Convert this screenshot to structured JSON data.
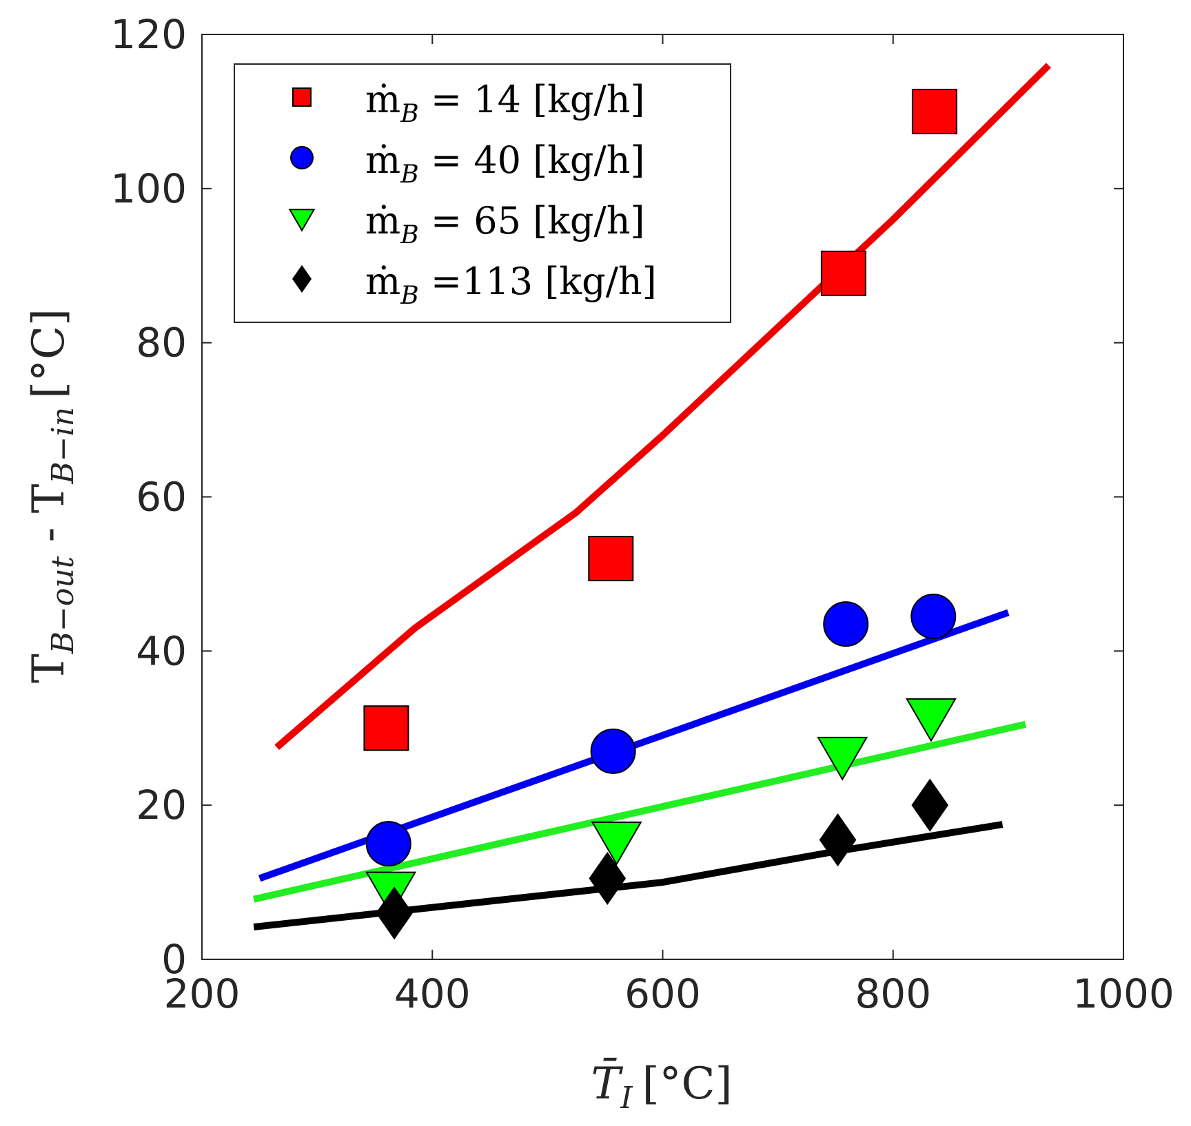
{
  "chart_data": {
    "type": "scatter",
    "title": "",
    "xlabel": "T̄",
    "xlabel_sub": "I",
    "xlabel_unit": "[°C]",
    "ylabel_main": "T",
    "ylabel_sub1": "B−out",
    "ylabel_mid": " - T",
    "ylabel_sub2": "B−in",
    "ylabel_unit": "[°C]",
    "xlim": [
      200,
      1000
    ],
    "ylim": [
      0,
      120
    ],
    "xticks": [
      200,
      400,
      600,
      800,
      1000
    ],
    "yticks": [
      0,
      20,
      40,
      60,
      80,
      100,
      120
    ],
    "grid": false,
    "legend_position": "top-left",
    "series": [
      {
        "name": "ṁ_B = 14 [kg/h]",
        "legend_main": "ṁ",
        "legend_sub": "B",
        "legend_rest": " = 14 [kg/h]",
        "marker": "square",
        "color": "#ff0000",
        "line_color": "#ee0000",
        "points": [
          [
            360,
            30
          ],
          [
            555,
            52
          ],
          [
            757,
            89
          ],
          [
            836,
            110
          ]
        ],
        "fit": [
          [
            265,
            27.5
          ],
          [
            385,
            43
          ],
          [
            525,
            58
          ],
          [
            600,
            68
          ],
          [
            700,
            82
          ],
          [
            800,
            96
          ],
          [
            935,
            116
          ]
        ]
      },
      {
        "name": "ṁ_B = 40 [kg/h]",
        "legend_main": "ṁ",
        "legend_sub": "B",
        "legend_rest": " = 40 [kg/h]",
        "marker": "circle",
        "color": "#0000ff",
        "line_color": "#0000ee",
        "points": [
          [
            362,
            15
          ],
          [
            557,
            27
          ],
          [
            759,
            43.5
          ],
          [
            835,
            44.5
          ]
        ],
        "fit": [
          [
            250,
            10.5
          ],
          [
            900,
            45
          ]
        ]
      },
      {
        "name": "ṁ_B = 65 [kg/h]",
        "legend_main": "ṁ",
        "legend_sub": "B",
        "legend_rest": " = 65 [kg/h]",
        "marker": "triangle-down",
        "color": "#00ff00",
        "line_color": "#22ee22",
        "points": [
          [
            364,
            9
          ],
          [
            560,
            15.5
          ],
          [
            756,
            26.5
          ],
          [
            833,
            31.5
          ]
        ],
        "fit": [
          [
            245,
            7.8
          ],
          [
            915,
            30.5
          ]
        ]
      },
      {
        "name": "ṁ_B =113 [kg/h]",
        "legend_main": "ṁ",
        "legend_sub": "B",
        "legend_rest": " =113 [kg/h]",
        "marker": "diamond",
        "color": "#000000",
        "line_color": "#000000",
        "points": [
          [
            367,
            6
          ],
          [
            552,
            10.5
          ],
          [
            752,
            15.5
          ],
          [
            832,
            20
          ]
        ],
        "fit": [
          [
            245,
            4.2
          ],
          [
            600,
            10
          ],
          [
            750,
            14
          ],
          [
            895,
            17.5
          ]
        ]
      }
    ]
  }
}
